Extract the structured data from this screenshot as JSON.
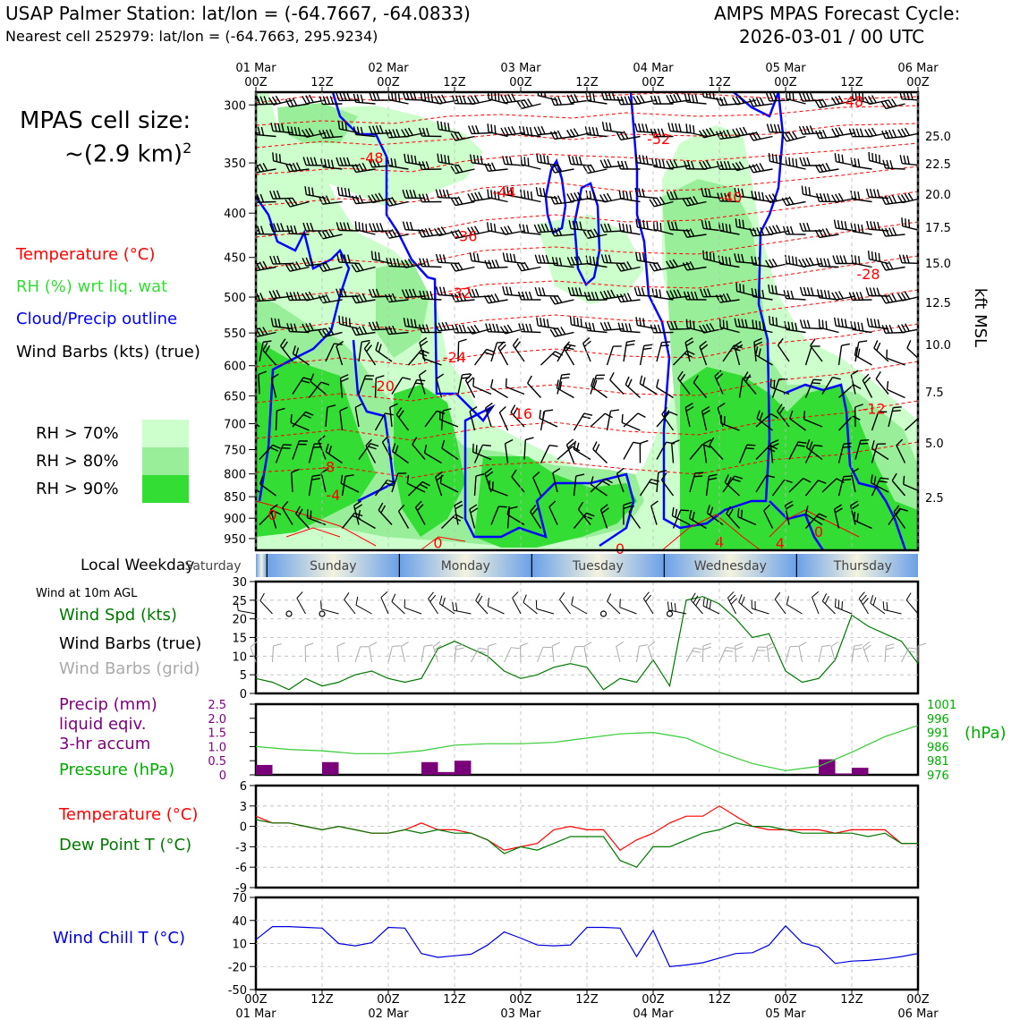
{
  "header": {
    "title": "USAP Palmer Station: lat/lon = (-64.7667, -64.0833)",
    "subtitle": "Nearest cell 252979: lat/lon = (-64.7663, 295.9234)",
    "cycle_line1": "AMPS MPAS Forecast Cycle:",
    "cycle_line2": "2026-03-01 / 00 UTC"
  },
  "left_panel": {
    "cell_size_line1": "MPAS cell size:",
    "cell_size_line2": "~(2.9 km)",
    "cell_size_exp": "2",
    "legend": [
      {
        "label": "Temperature (°C)",
        "color": "#ff0000"
      },
      {
        "label": "RH (%) wrt liq. wat",
        "color": "#33dd33"
      },
      {
        "label": "Cloud/Precip outline",
        "color": "#0000ff"
      },
      {
        "label": "Wind Barbs (kts) (true)",
        "color": "#000000"
      }
    ],
    "rh_legend": [
      {
        "label": "RH > 70%",
        "color": "#ccffcc"
      },
      {
        "label": "RH > 80%",
        "color": "#99ee99"
      },
      {
        "label": "RH > 90%",
        "color": "#33dd33"
      }
    ]
  },
  "time_axis": {
    "top_ticks": [
      {
        "line1": "01 Mar",
        "line2": "00Z"
      },
      {
        "line1": "",
        "line2": "12Z"
      },
      {
        "line1": "02 Mar",
        "line2": "00Z"
      },
      {
        "line1": "",
        "line2": "12Z"
      },
      {
        "line1": "03 Mar",
        "line2": "00Z"
      },
      {
        "line1": "",
        "line2": "12Z"
      },
      {
        "line1": "04 Mar",
        "line2": "00Z"
      },
      {
        "line1": "",
        "line2": "12Z"
      },
      {
        "line1": "05 Mar",
        "line2": "00Z"
      },
      {
        "line1": "",
        "line2": "12Z"
      },
      {
        "line1": "06 Mar",
        "line2": "00Z"
      }
    ],
    "bottom_ticks": [
      {
        "line1": "00Z",
        "line2": "01 Mar"
      },
      {
        "line1": "12Z",
        "line2": ""
      },
      {
        "line1": "00Z",
        "line2": "02 Mar"
      },
      {
        "line1": "12Z",
        "line2": ""
      },
      {
        "line1": "00Z",
        "line2": "03 Mar"
      },
      {
        "line1": "12Z",
        "line2": ""
      },
      {
        "line1": "00Z",
        "line2": "04 Mar"
      },
      {
        "line1": "12Z",
        "line2": ""
      },
      {
        "line1": "00Z",
        "line2": "05 Mar"
      },
      {
        "line1": "12Z",
        "line2": ""
      },
      {
        "line1": "00Z",
        "line2": "06 Mar"
      }
    ]
  },
  "weekday_strip": {
    "label": "Local Weekday",
    "days": [
      "Saturday",
      "Sunday",
      "Monday",
      "Tuesday",
      "Wednesday",
      "Thursday"
    ]
  },
  "chart_data": [
    {
      "type": "heatmap",
      "ylabel_right": "kft MSL",
      "yticks_left_hpa": [
        300,
        350,
        400,
        450,
        500,
        550,
        600,
        650,
        700,
        750,
        800,
        850,
        900,
        950
      ],
      "yticks_right_kft": [
        "25.0",
        "22.5",
        "20.0",
        "17.5",
        "15.0",
        "12.5",
        "10.0",
        "7.5",
        "5.0",
        "2.5"
      ],
      "ylim_hpa": [
        290,
        980
      ],
      "x_hours_range": [
        0,
        120
      ],
      "temperature_labels": [
        {
          "text": "-48",
          "h": 21,
          "p": 345
        },
        {
          "text": "-52",
          "h": 73,
          "p": 328
        },
        {
          "text": "-48",
          "h": 108,
          "p": 297
        },
        {
          "text": "-44",
          "h": 45,
          "p": 378
        },
        {
          "text": "-40",
          "h": 86,
          "p": 383
        },
        {
          "text": "-36",
          "h": 38,
          "p": 425
        },
        {
          "text": "-32",
          "h": 37,
          "p": 494
        },
        {
          "text": "-28",
          "h": 111,
          "p": 470
        },
        {
          "text": "-24",
          "h": 36,
          "p": 586
        },
        {
          "text": "-20",
          "h": 23,
          "p": 633
        },
        {
          "text": "-16",
          "h": 48,
          "p": 681
        },
        {
          "text": "-12",
          "h": 112,
          "p": 672
        },
        {
          "text": "-8",
          "h": 13,
          "p": 785
        },
        {
          "text": "-4",
          "h": 14,
          "p": 846
        },
        {
          "text": "0",
          "h": 3,
          "p": 891
        },
        {
          "text": "0",
          "h": 33,
          "p": 960
        },
        {
          "text": "0",
          "h": 66,
          "p": 975
        },
        {
          "text": "4",
          "h": 84,
          "p": 958
        },
        {
          "text": "4",
          "h": 95,
          "p": 962
        },
        {
          "text": "0",
          "h": 102,
          "p": 932
        }
      ]
    },
    {
      "type": "line",
      "title": "Wind at 10m AGL",
      "series": [
        {
          "name": "Wind Spd (kts)",
          "color": "#007700"
        }
      ],
      "legend": [
        "Wind Spd (kts)",
        "Wind Barbs (true)",
        "Wind Barbs (grid)"
      ],
      "x": [
        0,
        3,
        6,
        9,
        12,
        15,
        18,
        21,
        24,
        27,
        30,
        33,
        36,
        39,
        42,
        45,
        48,
        51,
        54,
        57,
        60,
        63,
        66,
        69,
        72,
        75,
        78,
        81,
        84,
        87,
        90,
        93,
        96,
        99,
        102,
        105,
        108,
        111,
        114,
        117,
        120
      ],
      "values": [
        4,
        3,
        1,
        4,
        2,
        3,
        5,
        6,
        4,
        3,
        4,
        12,
        14,
        12,
        10,
        6,
        4,
        5,
        7,
        8,
        7,
        1,
        4,
        3,
        9,
        2,
        25,
        26,
        24,
        20,
        15,
        16,
        6,
        3,
        4,
        9,
        21,
        18,
        16,
        14,
        8
      ],
      "yticks": [
        0,
        5,
        10,
        15,
        20,
        25,
        30
      ],
      "ylim": [
        0,
        30
      ]
    },
    {
      "type": "bar",
      "legend": [
        "Precip (mm)",
        "liquid eqiv.",
        "3-hr accum",
        "Pressure (hPa)"
      ],
      "precip_x": [
        1.5,
        10.5,
        13.5,
        31.5,
        34.5,
        37.5,
        103.5,
        106.5,
        109.5
      ],
      "precip_values": [
        0.35,
        0.0,
        0.45,
        0.45,
        0.1,
        0.5,
        0.55,
        0.05,
        0.25
      ],
      "precip_ylim": [
        0,
        2.5
      ],
      "precip_yticks": [
        "2.5",
        "2.0",
        "1.5",
        "1.0",
        "0.5",
        "0"
      ],
      "pressure_x": [
        0,
        6,
        12,
        18,
        24,
        30,
        36,
        42,
        48,
        54,
        60,
        66,
        72,
        78,
        84,
        90,
        96,
        102,
        108,
        114,
        120
      ],
      "pressure_values": [
        986,
        985,
        984.5,
        983.5,
        983.5,
        984.5,
        986.5,
        987,
        987,
        987.5,
        989,
        990.5,
        991,
        989,
        984,
        980,
        977.5,
        979,
        984,
        989.5,
        993.5
      ],
      "pressure_ylim": [
        976,
        1001
      ],
      "pressure_yticks": [
        "1001",
        "996",
        "991",
        "986",
        "981",
        "976"
      ],
      "pressure_unit": "(hPa)"
    },
    {
      "type": "line",
      "series": [
        {
          "name": "Temperature (°C)",
          "color": "#ff0000"
        },
        {
          "name": "Dew Point T (°C)",
          "color": "#007700"
        }
      ],
      "x": [
        0,
        3,
        6,
        9,
        12,
        15,
        18,
        21,
        24,
        27,
        30,
        33,
        36,
        39,
        42,
        45,
        48,
        51,
        54,
        57,
        60,
        63,
        66,
        69,
        72,
        75,
        78,
        81,
        84,
        87,
        90,
        93,
        96,
        99,
        102,
        105,
        108,
        111,
        114,
        117,
        120
      ],
      "temp_values": [
        1.5,
        0.5,
        0.5,
        0,
        -0.5,
        0,
        -0.5,
        -1,
        -1,
        -0.5,
        0.5,
        -0.5,
        -0.5,
        -1,
        -2,
        -3.5,
        -3,
        -2.5,
        -0.5,
        0,
        -0.5,
        -0.5,
        -3.5,
        -2,
        -1,
        0.5,
        1.5,
        1.5,
        3,
        1.5,
        0,
        -0.5,
        -0.5,
        -0.5,
        -0.5,
        -1,
        -0.5,
        -0.5,
        -0.5,
        -2.5,
        -2.5
      ],
      "dew_values": [
        1,
        0.5,
        0.5,
        0,
        -0.5,
        0,
        -0.5,
        -1,
        -1,
        -0.5,
        -1,
        -0.5,
        -1,
        -1,
        -2,
        -4,
        -3,
        -3.5,
        -2.5,
        -1.5,
        -1.5,
        -1.5,
        -5,
        -6,
        -3,
        -3,
        -2,
        -1,
        -0.5,
        0.5,
        0,
        0,
        -0.5,
        -1,
        -1,
        -1,
        -1,
        -1.5,
        -1,
        -2.5,
        -2.5
      ],
      "yticks": [
        6,
        3,
        0,
        -3,
        -6,
        -9
      ],
      "ylim": [
        -9,
        6
      ]
    },
    {
      "type": "line",
      "series": [
        {
          "name": "Wind Chill T (°C)",
          "color": "#0000dd"
        }
      ],
      "x": [
        0,
        3,
        6,
        9,
        12,
        15,
        18,
        21,
        24,
        27,
        30,
        33,
        36,
        39,
        42,
        45,
        48,
        51,
        54,
        57,
        60,
        63,
        66,
        69,
        72,
        75,
        78,
        81,
        84,
        87,
        90,
        93,
        96,
        99,
        102,
        105,
        108,
        111,
        114,
        117,
        120
      ],
      "values": [
        15,
        32,
        32,
        31,
        30,
        10,
        7,
        11,
        31,
        30,
        -3,
        -8,
        -6,
        -4,
        8,
        25,
        17,
        8,
        7,
        8,
        31,
        31,
        30,
        -7,
        27,
        -20,
        -18,
        -15,
        -9,
        -3,
        -2,
        8,
        33,
        11,
        5,
        -16,
        -13,
        -12,
        -10,
        -7,
        -3
      ],
      "yticks": [
        70,
        40,
        10,
        -20,
        -50
      ],
      "ylim": [
        -50,
        70
      ]
    }
  ]
}
